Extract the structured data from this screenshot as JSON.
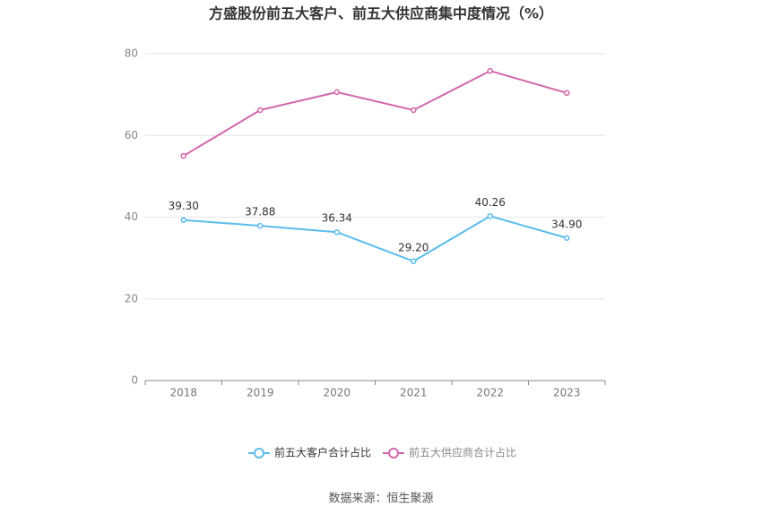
{
  "chart_data": {
    "type": "line",
    "title": "方盛股份前五大客户、前五大供应商集中度情况（%）",
    "categories": [
      "2018",
      "2019",
      "2020",
      "2021",
      "2022",
      "2023"
    ],
    "series": [
      {
        "name": "前五大客户合计占比",
        "color": "#5bbcec",
        "values": [
          39.3,
          37.88,
          36.34,
          29.2,
          40.26,
          34.9
        ],
        "value_labels": [
          "39.30",
          "37.88",
          "36.34",
          "29.20",
          "40.26",
          "34.90"
        ]
      },
      {
        "name": "前五大供应商合计占比",
        "color": "#d166ab",
        "values": [
          55.0,
          66.2,
          70.6,
          66.2,
          75.8,
          70.4
        ]
      }
    ],
    "ylim": [
      0,
      80
    ],
    "yticks": [
      0,
      20,
      40,
      60,
      80
    ],
    "grid": true,
    "source": "数据来源：恒生聚源"
  }
}
